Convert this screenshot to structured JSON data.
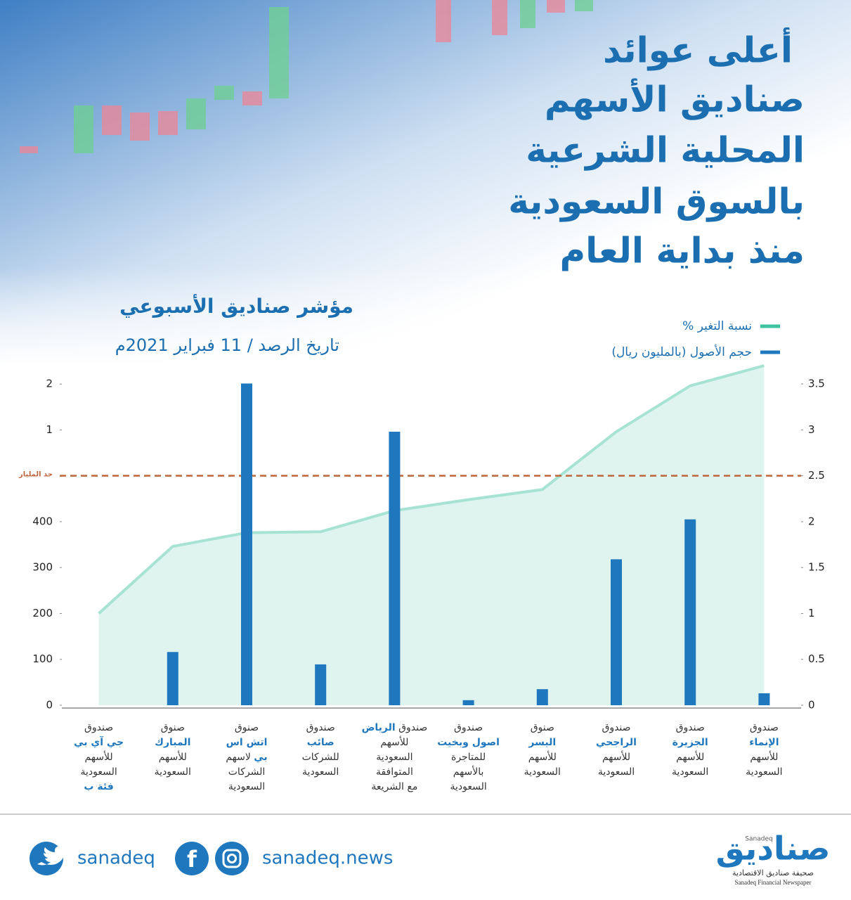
{
  "chart_data": {
    "type": "bar-line",
    "title_lines": [
      "أعلى عوائد",
      "صناديق الأسهم",
      "المحلية الشرعية",
      "بالسوق السعودية",
      "منذ بداية العام"
    ],
    "subtitle": "مؤشر صناديق الأسبوعي",
    "date_note": "تاريخ الرصد / 11 فبراير 2021م",
    "categories": [
      [
        [
          {
            "text": "صندوق"
          }
        ],
        [
          {
            "text": "جي آي بي",
            "accent": true
          }
        ],
        [
          {
            "text": "للأسهم"
          }
        ],
        [
          {
            "text": "السعودية"
          }
        ],
        [
          {
            "text": "فئة ب",
            "accent": true
          }
        ]
      ],
      [
        [
          {
            "text": "صنوق"
          }
        ],
        [
          {
            "text": "المبارك",
            "accent": true
          }
        ],
        [
          {
            "text": "للأسهم"
          }
        ],
        [
          {
            "text": "السعودية"
          }
        ]
      ],
      [
        [
          {
            "text": "صنوق"
          }
        ],
        [
          {
            "text": "اتش اس",
            "accent": true
          }
        ],
        [
          {
            "text": "بي",
            "accent": true
          },
          {
            "text": " لاسهم"
          }
        ],
        [
          {
            "text": "الشركات"
          }
        ],
        [
          {
            "text": "السعودية"
          }
        ]
      ],
      [
        [
          {
            "text": "صندوق"
          }
        ],
        [
          {
            "text": "صائب",
            "accent": true
          }
        ],
        [
          {
            "text": "للشركات"
          }
        ],
        [
          {
            "text": "السعودية"
          }
        ]
      ],
      [
        [
          {
            "text": "صندوق "
          },
          {
            "text": "الرياض",
            "accent": true
          }
        ],
        [
          {
            "text": "للأسهم"
          }
        ],
        [
          {
            "text": "السعودية"
          }
        ],
        [
          {
            "text": "المتوافقة"
          }
        ],
        [
          {
            "text": "مع الشريعة"
          }
        ]
      ],
      [
        [
          {
            "text": "صندوق"
          }
        ],
        [
          {
            "text": "اصول وبخيت",
            "accent": true
          }
        ],
        [
          {
            "text": "للمتاجرة"
          }
        ],
        [
          {
            "text": "بالأسهم"
          }
        ],
        [
          {
            "text": "السعودية"
          }
        ]
      ],
      [
        [
          {
            "text": "صنوق"
          }
        ],
        [
          {
            "text": "اليسر",
            "accent": true
          }
        ],
        [
          {
            "text": "للأسهم"
          }
        ],
        [
          {
            "text": "السعودية"
          }
        ]
      ],
      [
        [
          {
            "text": "صندوق"
          }
        ],
        [
          {
            "text": "الراجحي",
            "accent": true
          }
        ],
        [
          {
            "text": "للأسهم"
          }
        ],
        [
          {
            "text": "السعودية"
          }
        ]
      ],
      [
        [
          {
            "text": "صندوق"
          }
        ],
        [
          {
            "text": "الجزيرة",
            "accent": true
          }
        ],
        [
          {
            "text": "للأسهم"
          }
        ],
        [
          {
            "text": "السعودية"
          }
        ]
      ],
      [
        [
          {
            "text": "صندوق"
          }
        ],
        [
          {
            "text": "الإنماء",
            "accent": true
          }
        ],
        [
          {
            "text": "للأسهم"
          }
        ],
        [
          {
            "text": "السعودية"
          }
        ]
      ]
    ],
    "series": [
      {
        "name": "حجم الأصول (بالمليون ريال)",
        "color": "#1f77bd",
        "kind": "bar",
        "axis": "y",
        "values": [
          0,
          116,
          2010,
          89,
          980,
          11,
          35,
          318,
          405,
          26
        ]
      },
      {
        "name": "نسبة التغير %",
        "color": "#a6e3d3",
        "kind": "area",
        "axis": "y2",
        "values": [
          1.0,
          1.73,
          1.88,
          1.89,
          2.12,
          2.24,
          2.35,
          2.98,
          3.48,
          3.7
        ]
      }
    ],
    "yticks": [
      0,
      100,
      200,
      300,
      400,
      {
        "value": 1000,
        "label": "1"
      },
      {
        "value": 2000,
        "label": "2"
      }
    ],
    "yscale": "segmented",
    "reference_line": {
      "value": 500,
      "label": "حد المليار",
      "color": "#c0643a"
    },
    "y2lim": [
      0,
      3.7
    ],
    "y2ticks": [
      0,
      0.5,
      1,
      1.5,
      2,
      2.5,
      3,
      3.5
    ],
    "legend": "top-right"
  },
  "footer": {
    "twitter": "sanadeq",
    "web": "sanadeq.news",
    "logo": "صناديق",
    "logo_latin": "Sanadeq",
    "logo_sub": "صحيفة صناديق الاقتصادية",
    "logo_sub_latin": "Sanadeq Financial Newspaper"
  }
}
